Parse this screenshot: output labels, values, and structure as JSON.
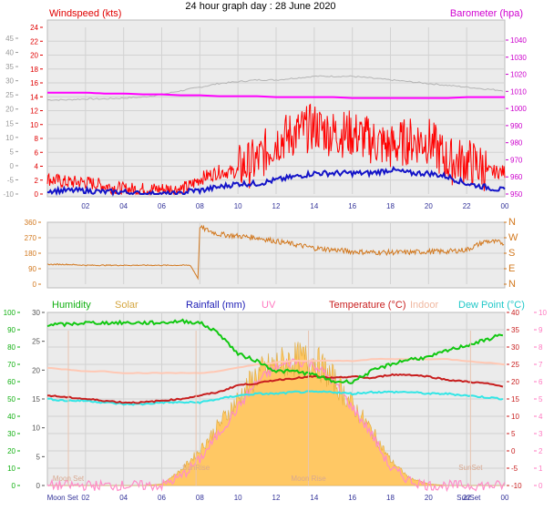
{
  "page_title": "24 hour graph day : 28 June 2020",
  "colors": {
    "wind_avg": "#1414c8",
    "wind_gust": "#ff0000",
    "pressure": "#ff00ff",
    "pressure_prev": "#b4b4b4",
    "direction": "#d2781e",
    "humidity": "#12c812",
    "solar_fill": "#ffc864",
    "solar_line": "#e1aa3c",
    "uv": "#ff8cc8",
    "temperature": "#c81e1e",
    "indoor": "#ffc8b4",
    "dewpoint": "#32e6e6",
    "plot_bg": "#ebebeb",
    "grid": "#d2d2d2"
  },
  "chart_data": [
    {
      "type": "line",
      "panel": "wind_pressure",
      "title": "",
      "x_ticks": [
        "02",
        "04",
        "06",
        "08",
        "10",
        "12",
        "14",
        "16",
        "18",
        "20",
        "22",
        "00"
      ],
      "y_left": {
        "label": "Windspeed (kts)",
        "ticks": [
          "24",
          "22",
          "20",
          "18",
          "16",
          "14",
          "12",
          "10",
          "8",
          "6",
          "4",
          "2",
          "0"
        ],
        "range": [
          0,
          24
        ]
      },
      "y_right": {
        "label": "Barometer (hpa)",
        "ticks": [
          "1040",
          "1030",
          "1020",
          "1010",
          "1000",
          "990",
          "980",
          "970",
          "960",
          "950"
        ],
        "range": [
          950,
          1045
        ]
      },
      "y_outer_left": {
        "ticks": [
          "45",
          "40",
          "35",
          "30",
          "25",
          "20",
          "15",
          "10",
          "5",
          "0",
          "-5",
          "-10"
        ],
        "range": [
          -10,
          45
        ]
      },
      "x_hours": [
        0,
        1,
        2,
        3,
        4,
        5,
        6,
        7,
        7.5,
        8,
        9,
        10,
        11,
        12,
        13,
        14,
        15,
        16,
        17,
        18,
        19,
        20,
        21,
        22,
        23,
        24
      ],
      "series": [
        {
          "name": "Barometer (hpa)",
          "values": [
            1011,
            1011,
            1011,
            1010.5,
            1010.5,
            1010,
            1010,
            1009.5,
            1009.5,
            1009.5,
            1009,
            1009,
            1009,
            1008.5,
            1008.5,
            1008.5,
            1008.5,
            1008,
            1008,
            1008,
            1008,
            1008,
            1008,
            1008.5,
            1008.5,
            1008.5
          ]
        },
        {
          "name": "Barometer previous period",
          "values": [
            1007,
            1007,
            1007.5,
            1007.5,
            1008,
            1008.5,
            1010,
            1012,
            1013,
            1014,
            1016,
            1017,
            1018,
            1018,
            1019,
            1020,
            1020,
            1020,
            1019,
            1018,
            1017,
            1016,
            1015,
            1014,
            1013,
            1012
          ]
        },
        {
          "name": "Wind gust (kts)",
          "values": [
            2,
            1.5,
            1.5,
            1,
            0.5,
            0.5,
            0.5,
            0.5,
            1,
            2,
            3,
            3,
            4,
            7,
            8,
            9,
            8,
            8,
            7,
            6,
            7,
            7,
            4,
            4,
            3,
            3
          ]
        },
        {
          "name": "Wind average (kts)",
          "values": [
            0.5,
            0.5,
            0.5,
            0.3,
            0.3,
            0,
            0,
            0,
            0.5,
            0.5,
            1,
            1.5,
            1.5,
            2,
            2.5,
            3,
            3,
            3,
            3,
            3.5,
            3,
            3,
            2.5,
            1.5,
            1,
            0.5
          ]
        }
      ]
    },
    {
      "type": "scatter",
      "panel": "wind_direction",
      "title": "",
      "y_left": {
        "ticks": [
          "360",
          "270",
          "180",
          "90",
          "0"
        ],
        "range": [
          0,
          360
        ]
      },
      "y_right": {
        "ticks": [
          "N",
          "W",
          "S",
          "E",
          "N"
        ]
      },
      "series": [
        {
          "name": "Wind direction (deg)",
          "x": [
            0,
            1,
            2,
            3,
            4,
            5,
            6,
            7,
            7.5,
            7.9,
            8,
            9,
            10,
            11,
            12,
            13,
            14,
            15,
            16,
            17,
            18,
            19,
            20,
            21,
            22,
            23,
            24
          ],
          "values": [
            115,
            115,
            110,
            110,
            110,
            110,
            110,
            110,
            110,
            35,
            330,
            290,
            280,
            270,
            250,
            230,
            210,
            200,
            190,
            185,
            185,
            185,
            190,
            190,
            200,
            250,
            240
          ]
        }
      ]
    },
    {
      "type": "line",
      "panel": "temperature_humidity_solar",
      "title": "",
      "legend": [
        "Humidity",
        "Solar",
        "Rainfall (mm)",
        "UV",
        "Temperature (°C)",
        "Indoor",
        "Dew Point (°C)"
      ],
      "x_ticks": [
        "02",
        "04",
        "06",
        "08",
        "10",
        "12",
        "14",
        "16",
        "18",
        "20",
        "22",
        "00"
      ],
      "y_outer_left": {
        "label": "Humidity",
        "ticks": [
          "100",
          "90",
          "80",
          "70",
          "60",
          "50",
          "40",
          "30",
          "20",
          "10",
          "0"
        ],
        "range": [
          0,
          100
        ]
      },
      "y_left": {
        "label": "Rainfall (mm)",
        "ticks": [
          "30",
          "25",
          "20",
          "15",
          "10",
          "5",
          "0"
        ],
        "range": [
          0,
          30
        ]
      },
      "y_right": {
        "label": "Temperature (°C)",
        "ticks": [
          "40",
          "35",
          "30",
          "25",
          "20",
          "15",
          "10",
          "5",
          "0",
          "-5",
          "-10"
        ],
        "range": [
          -10,
          40
        ]
      },
      "y_outer_right": {
        "label": "UV",
        "ticks": [
          "10",
          "9",
          "8",
          "7",
          "6",
          "5",
          "4",
          "3",
          "2",
          "1",
          "0"
        ],
        "range": [
          0,
          10
        ]
      },
      "annotations": [
        "Moon Set",
        "SunRise",
        "Moon Rise",
        "SunSet"
      ],
      "x_hours": [
        0,
        1,
        2,
        3,
        4,
        5,
        6,
        7,
        8,
        9,
        10,
        11,
        12,
        13,
        14,
        15,
        16,
        17,
        18,
        19,
        20,
        21,
        22,
        23,
        24
      ],
      "series": [
        {
          "name": "Humidity",
          "values": [
            93,
            93,
            94,
            94,
            94,
            94,
            94,
            95,
            94,
            88,
            76,
            72,
            66,
            66,
            64,
            60,
            60,
            66,
            70,
            73,
            74,
            78,
            81,
            84,
            88
          ]
        },
        {
          "name": "Temperature (°C)",
          "values": [
            16,
            15.5,
            15,
            14.5,
            14,
            14,
            14.5,
            15,
            16,
            17,
            19,
            19.5,
            20.5,
            21,
            21.5,
            21,
            21.5,
            21,
            22,
            22,
            21.5,
            20.5,
            20,
            19.5,
            18.5
          ]
        },
        {
          "name": "Indoor",
          "values": [
            24,
            23.5,
            23,
            23,
            22.5,
            22.5,
            22.5,
            22.5,
            22.5,
            23,
            24,
            25,
            25.5,
            26,
            26,
            26,
            26,
            26.5,
            26.5,
            26.5,
            26.5,
            26.5,
            26,
            25.5,
            25
          ]
        },
        {
          "name": "Dew Point (°C)",
          "values": [
            15,
            14.5,
            14.5,
            14,
            13.5,
            13.5,
            14,
            14,
            14,
            15,
            16,
            16.5,
            16.5,
            17,
            17,
            17,
            16.5,
            17,
            17,
            17,
            16.5,
            16.5,
            16,
            15.5,
            15
          ]
        },
        {
          "name": "Solar",
          "values": [
            0,
            0,
            0,
            0,
            0,
            0,
            0.3,
            3,
            7,
            12,
            17,
            22,
            24,
            25,
            25,
            21,
            16,
            11,
            5,
            1.5,
            0.3,
            0,
            0,
            0,
            0
          ]
        },
        {
          "name": "UV",
          "values": [
            0,
            0,
            0,
            0,
            0,
            0,
            0,
            0.5,
            1.5,
            3,
            4.5,
            6,
            6.8,
            7.2,
            7,
            6,
            4.5,
            3,
            1,
            0.3,
            0,
            0,
            0,
            0,
            0
          ]
        },
        {
          "name": "Rainfall (mm)",
          "values": [
            0,
            0,
            0,
            0,
            0,
            0,
            0,
            0,
            0,
            0,
            0,
            0,
            0,
            0,
            0,
            0,
            0,
            0,
            0,
            0,
            0,
            0,
            0,
            0,
            0
          ]
        }
      ]
    }
  ]
}
